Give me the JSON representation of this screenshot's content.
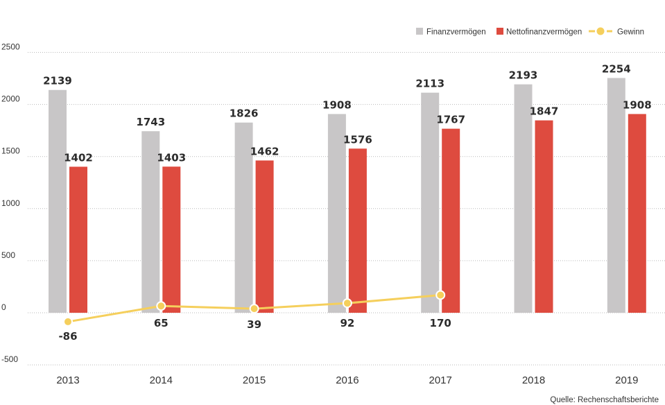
{
  "chart_data": {
    "type": "bar",
    "categories": [
      "2013",
      "2014",
      "2015",
      "2016",
      "2017",
      "2018",
      "2019"
    ],
    "series": [
      {
        "name": "Finanzvermögen",
        "type": "bar",
        "color": "#c8c6c7",
        "values": [
          2139,
          1743,
          1826,
          1908,
          2113,
          2193,
          2254
        ]
      },
      {
        "name": "Nettofinanzvermögen",
        "type": "bar",
        "color": "#de4b3f",
        "values": [
          1402,
          1403,
          1462,
          1576,
          1767,
          1847,
          1908
        ]
      },
      {
        "name": "Gewinn",
        "type": "line",
        "color": "#f5cf5c",
        "values": [
          -86,
          65,
          39,
          92,
          170,
          null,
          null
        ]
      }
    ],
    "ylim": [
      -500,
      2500
    ],
    "yticks": [
      -500,
      0,
      500,
      1000,
      1500,
      2000,
      2500
    ],
    "grid": true,
    "legend_position": "top-right",
    "source": "Quelle: Rechenschaftsberichte"
  }
}
